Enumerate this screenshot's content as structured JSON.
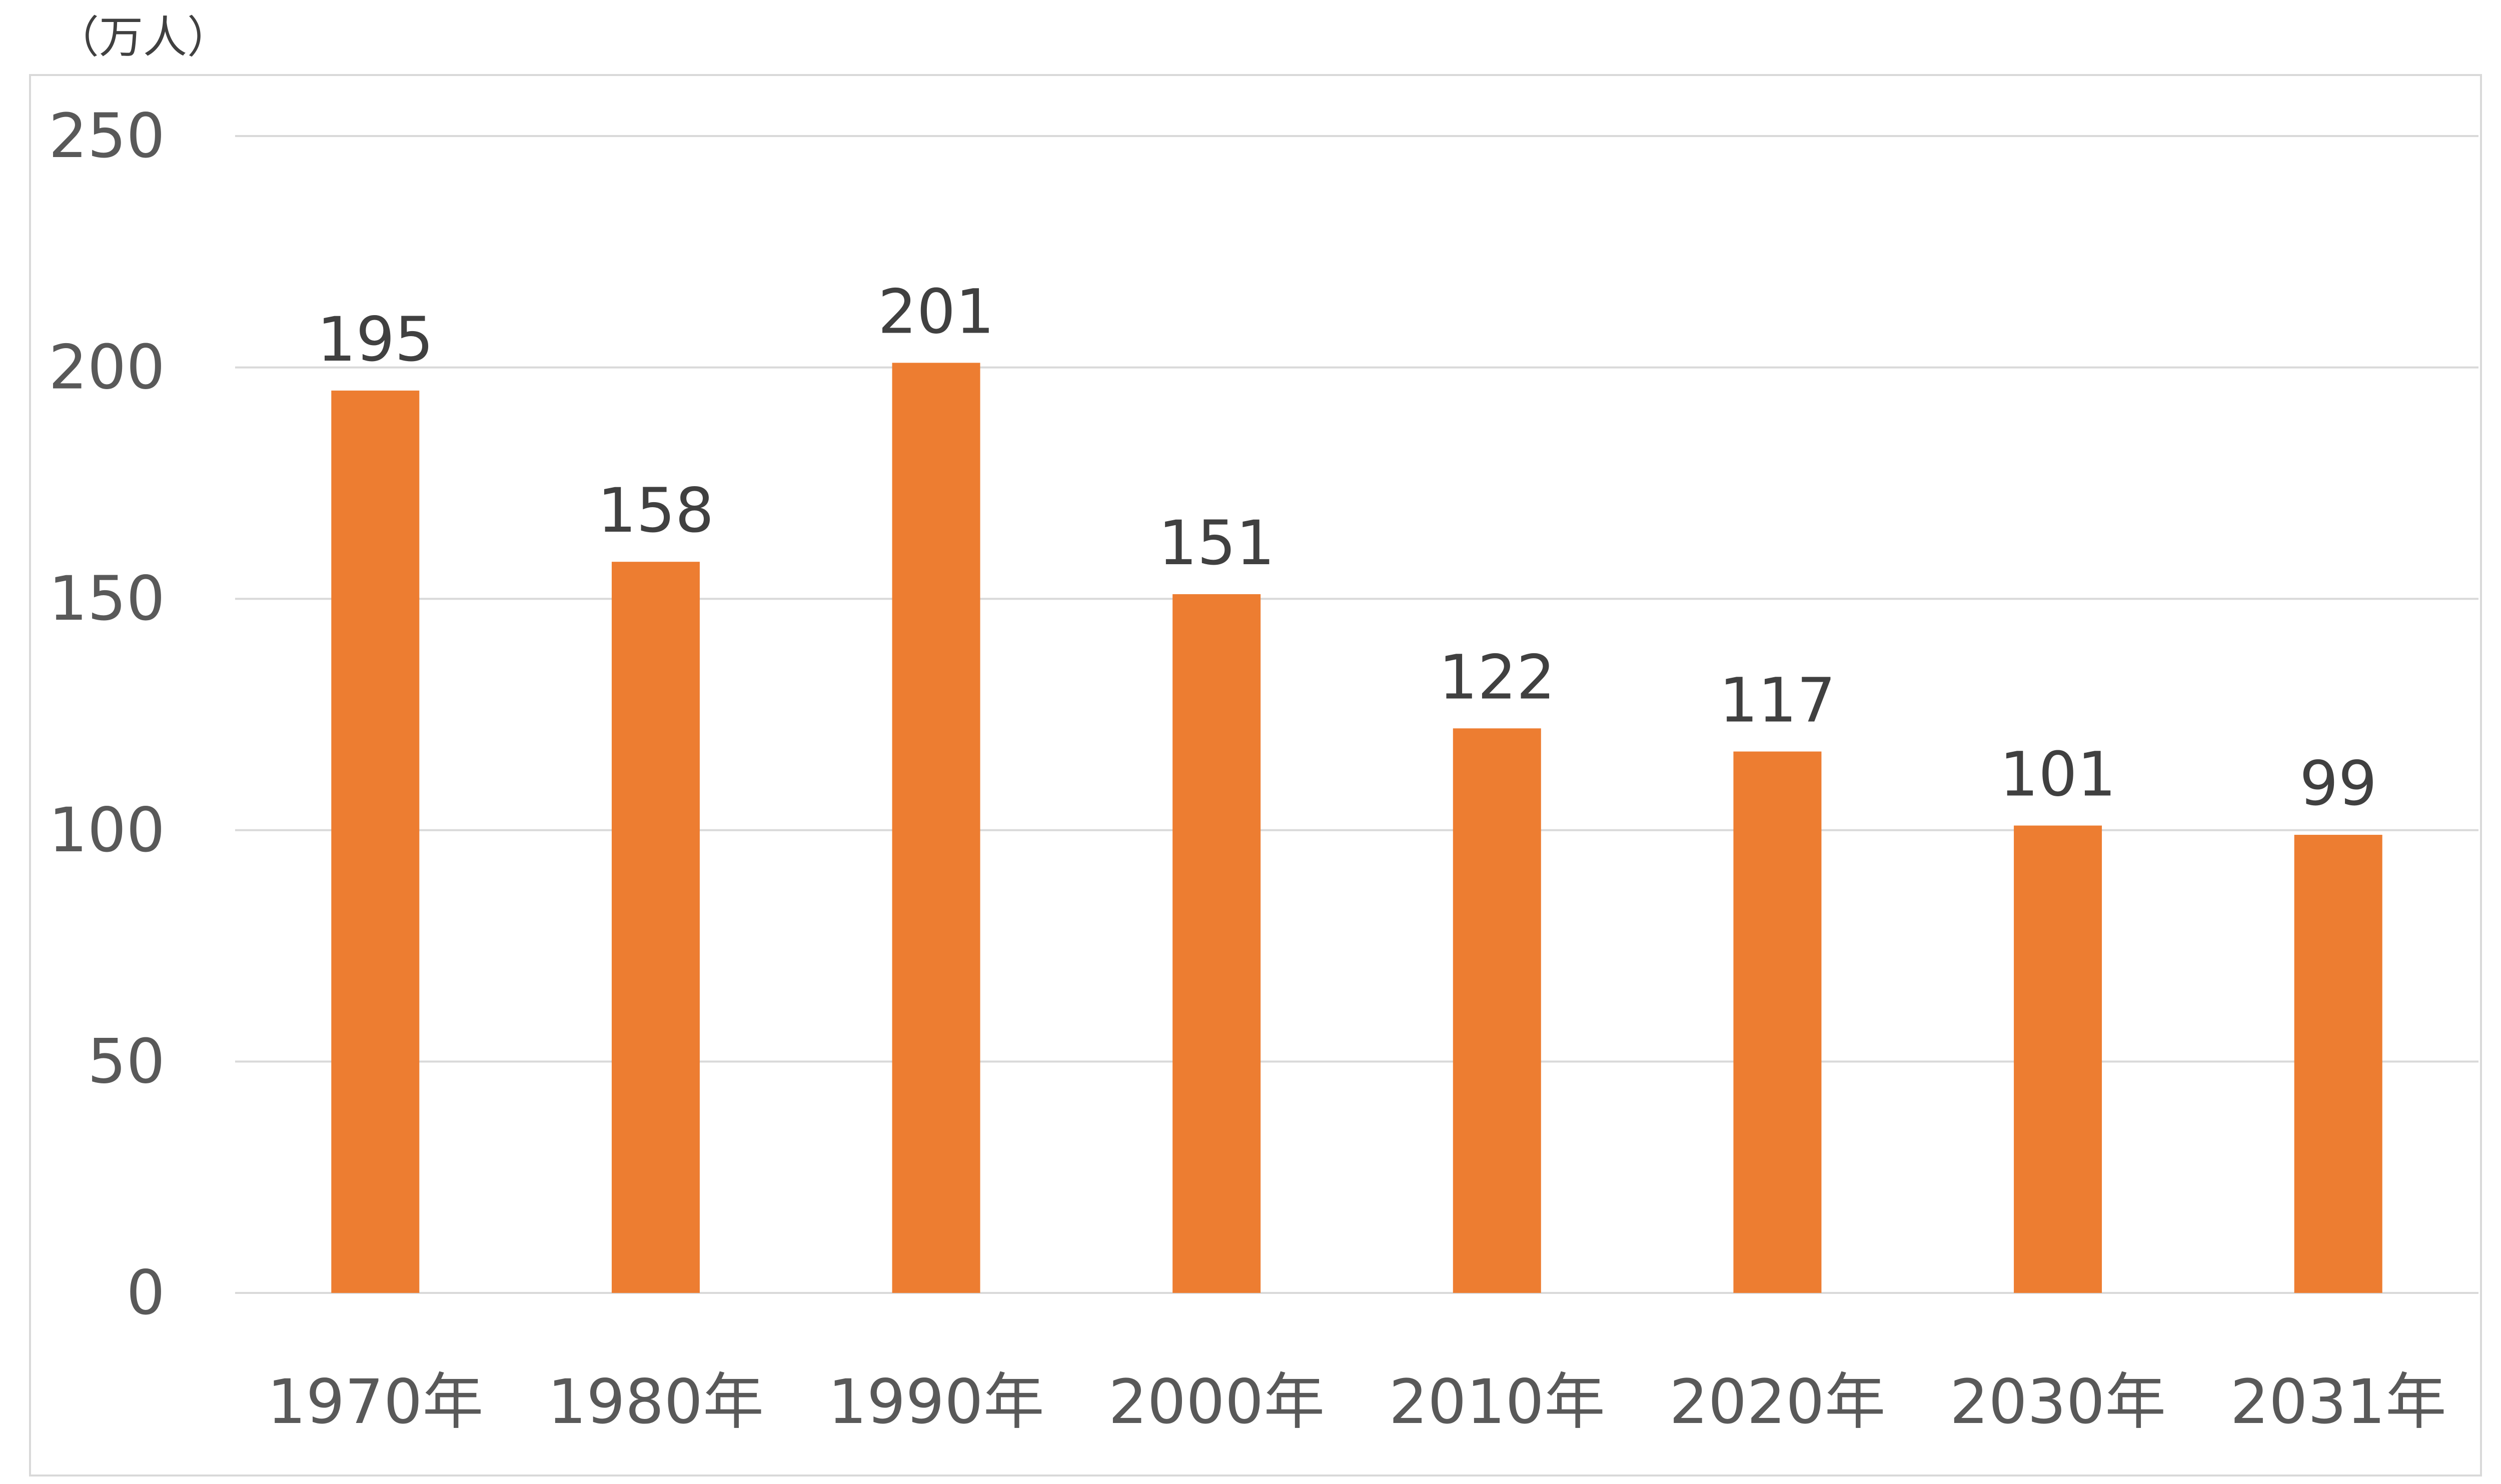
{
  "chart_data": {
    "type": "bar",
    "title": "",
    "xlabel": "",
    "ylabel": "",
    "unit_label": "（万人）",
    "categories": [
      "1970年",
      "1980年",
      "1990年",
      "2000年",
      "2010年",
      "2020年",
      "2030年",
      "2031年"
    ],
    "values": [
      195,
      158,
      201,
      151,
      122,
      117,
      101,
      99
    ],
    "data_labels": [
      "195",
      "158",
      "201",
      "151",
      "122",
      "117",
      "101",
      "99"
    ],
    "ylim": [
      0,
      250
    ],
    "yticks": [
      "0",
      "50",
      "100",
      "150",
      "200",
      "250"
    ],
    "grid": true,
    "legend": "none",
    "bar_color": "#ED7D31",
    "grid_color": "#D9D9D9"
  }
}
